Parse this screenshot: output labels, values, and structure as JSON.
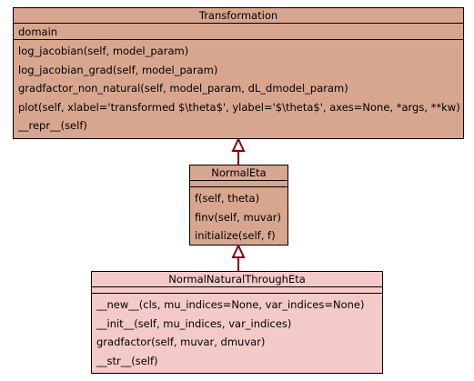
{
  "diagram": {
    "classes": [
      {
        "id": "transformation",
        "name": "Transformation",
        "attributes": [
          "domain"
        ],
        "methods": [
          "log_jacobian(self, model_param)",
          "log_jacobian_grad(self, model_param)",
          "gradfactor_non_natural(self, model_param, dL_dmodel_param)",
          "plot(self, xlabel='transformed $\\theta$', ylabel='$\\theta$', axes=None, *args, **kw)",
          "__repr__(self)"
        ]
      },
      {
        "id": "normaleta",
        "name": "NormalEta",
        "attributes": [],
        "methods": [
          "f(self, theta)",
          "finv(self, muvar)",
          "initialize(self, f)"
        ]
      },
      {
        "id": "normalnaturalthrougheta",
        "name": "NormalNaturalThroughEta",
        "attributes": [],
        "methods": [
          "__new__(cls, mu_indices=None, var_indices=None)",
          "__init__(self, mu_indices, var_indices)",
          "gradfactor(self, muvar, dmuvar)",
          "__str__(self)"
        ]
      }
    ],
    "edges": [
      {
        "from": "normaleta",
        "to": "transformation",
        "type": "inheritance"
      },
      {
        "from": "normalnaturalthrougheta",
        "to": "normaleta",
        "type": "inheritance"
      }
    ],
    "colors": {
      "class_fill": "#d8a68f",
      "leaf_fill": "#f4c9c9",
      "border": "#000000",
      "edge": "#8b0000"
    }
  }
}
